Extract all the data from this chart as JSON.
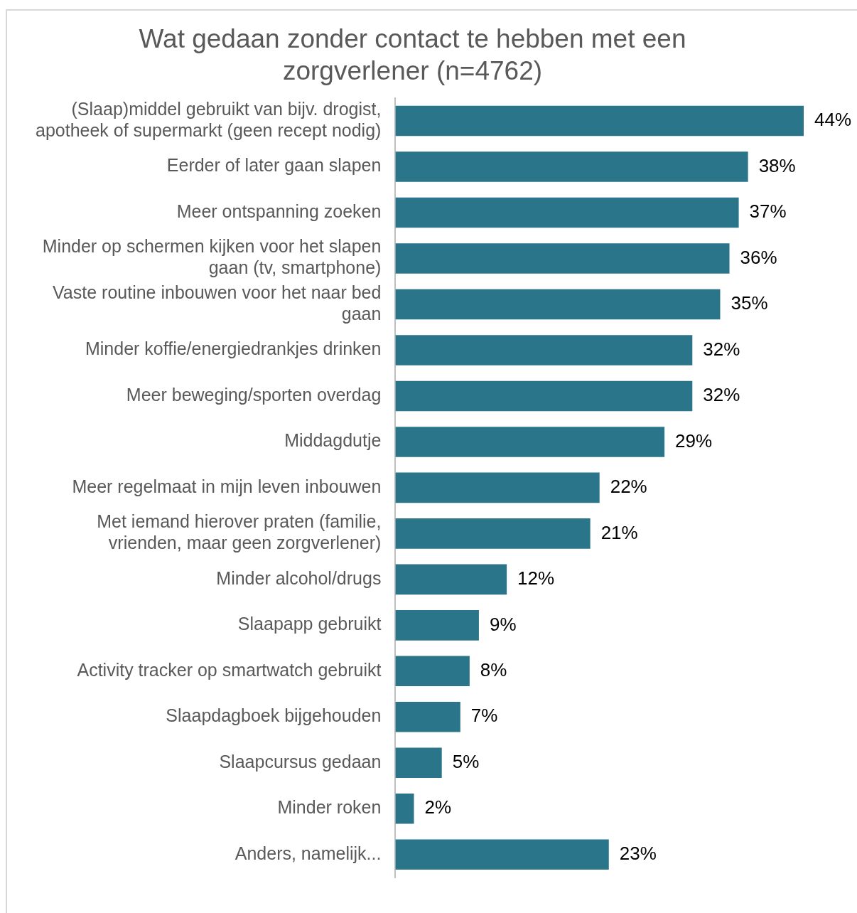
{
  "chart_data": {
    "type": "bar",
    "orientation": "horizontal",
    "title": "Wat gedaan zonder contact te hebben met een zorgverlener (n=4762)",
    "categories": [
      "(Slaap)middel gebruikt van bijv. drogist, apotheek of supermarkt (geen recept nodig)",
      "Eerder of later gaan slapen",
      "Meer ontspanning zoeken",
      "Minder op schermen kijken voor het slapen gaan (tv, smartphone)",
      "Vaste routine inbouwen voor het naar bed gaan",
      "Minder koffie/energiedrankjes drinken",
      "Meer beweging/sporten overdag",
      "Middagdutje",
      "Meer regelmaat in mijn leven inbouwen",
      "Met iemand hierover praten (familie, vrienden, maar geen zorgverlener)",
      "Minder alcohol/drugs",
      "Slaapapp gebruikt",
      "Activity tracker op smartwatch gebruikt",
      "Slaapdagboek bijgehouden",
      "Slaapcursus gedaan",
      "Minder roken",
      "Anders, namelijk..."
    ],
    "values": [
      44,
      38,
      37,
      36,
      35,
      32,
      32,
      29,
      22,
      21,
      12,
      9,
      8,
      7,
      5,
      2,
      23
    ],
    "value_labels": [
      "44%",
      "38%",
      "37%",
      "36%",
      "35%",
      "32%",
      "32%",
      "29%",
      "22%",
      "21%",
      "12%",
      "9%",
      "8%",
      "7%",
      "5%",
      "2%",
      "23%"
    ],
    "color": "#2a7589",
    "legend": false,
    "tick_labels": "y"
  }
}
